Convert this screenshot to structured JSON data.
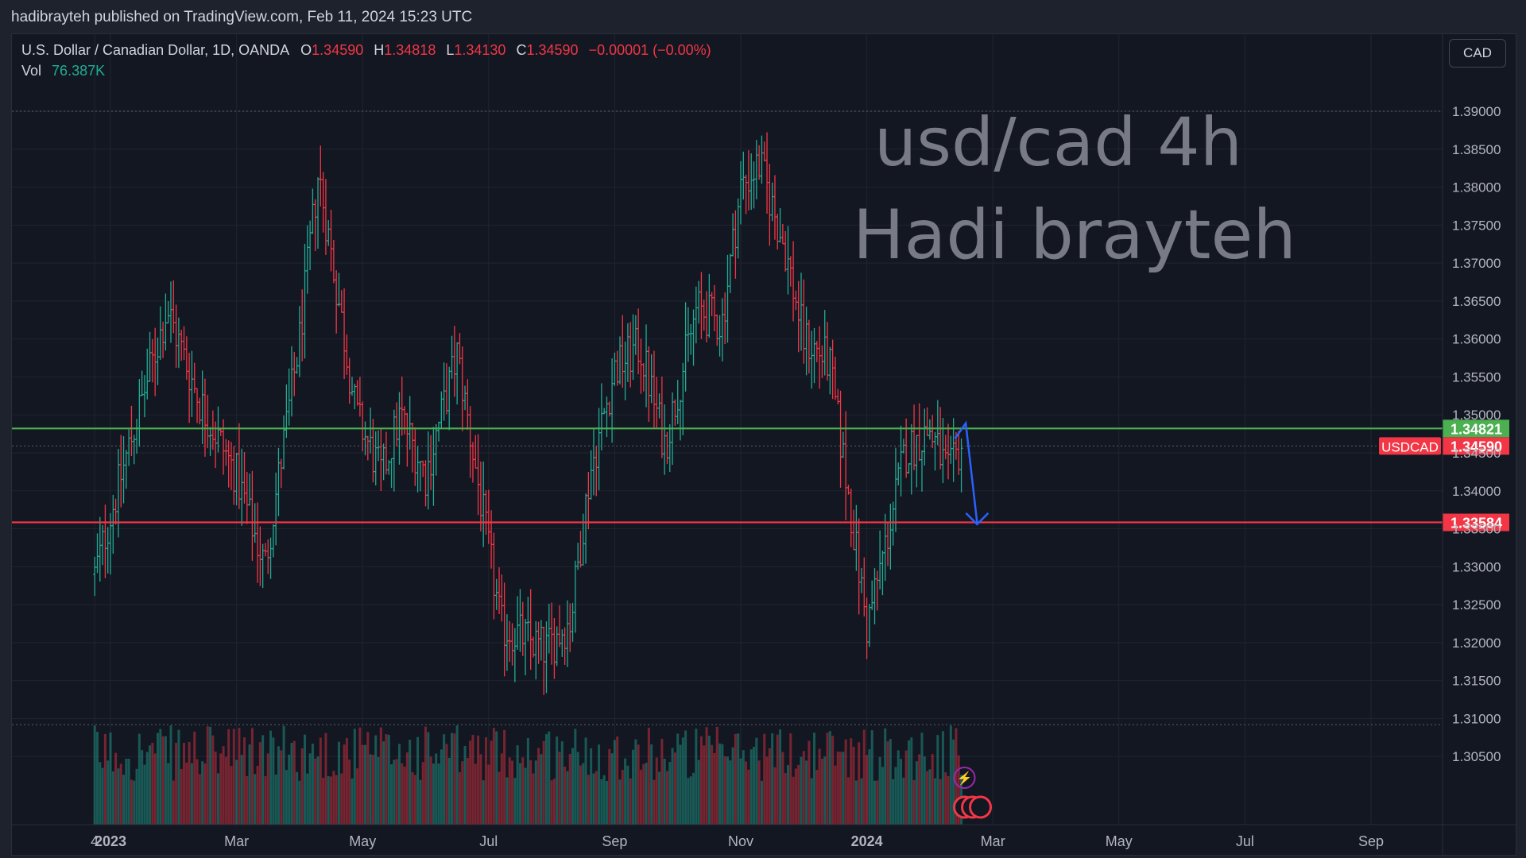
{
  "header": {
    "published_line": "hadibrayteh published on TradingView.com, Feb 11, 2024 15:23 UTC"
  },
  "legend": {
    "symbol": "U.S. Dollar / Canadian Dollar, 1D, OANDA",
    "o_label": "O",
    "o_value": "1.34590",
    "h_label": "H",
    "h_value": "1.34818",
    "l_label": "L",
    "l_value": "1.34130",
    "c_label": "C",
    "c_value": "1.34590",
    "change": "−0.00001 (−0.00%)",
    "vol_label": "Vol",
    "vol_value": "76.387K"
  },
  "currency_button": "CAD",
  "colors": {
    "background": "#131722",
    "up": "#22ab94",
    "down": "#f23645",
    "resistance": "#4caf50",
    "support": "#f23645",
    "arrow": "#2962ff",
    "annotation": "#787b86"
  },
  "chart_data": {
    "type": "ohlc",
    "title_annotation": [
      "usd/cad 4h",
      "Hadi brayteh"
    ],
    "y_axis": {
      "ticks": [
        "1.30500",
        "1.31000",
        "1.31500",
        "1.32000",
        "1.32500",
        "1.33000",
        "1.33500",
        "1.34000",
        "1.34500",
        "1.35000",
        "1.35500",
        "1.36000",
        "1.36500",
        "1.37000",
        "1.37500",
        "1.38000",
        "1.38500",
        "1.39000"
      ],
      "ylim": [
        1.3025,
        1.3962
      ]
    },
    "x_axis": {
      "ticks": [
        "4",
        "2023",
        "Mar",
        "May",
        "Jul",
        "Sep",
        "Nov",
        "2024",
        "Mar",
        "May",
        "Jul",
        "Sep"
      ],
      "tick_times": [
        -0.25,
        0,
        2,
        4,
        6,
        8,
        10,
        12,
        14,
        16,
        18,
        20
      ],
      "xlim": [
        -0.28,
        23.35
      ]
    },
    "grid": true,
    "price_lines": [
      {
        "label": "1.34821",
        "value": 1.34821,
        "color": "#4caf50"
      },
      {
        "label": "1.34590",
        "value": 1.3459,
        "tag": "USDCAD",
        "color": "#f23645"
      },
      {
        "label": "1.33584",
        "value": 1.33584,
        "color": "#f23645"
      }
    ],
    "dotted_lines": [
      1.39,
      1.3459,
      1.3092
    ],
    "key_points": [
      {
        "t": -0.25,
        "close": 1.329
      },
      {
        "t": 0.3,
        "close": 1.346
      },
      {
        "t": 0.9,
        "close": 1.364
      },
      {
        "t": 1.4,
        "close": 1.352
      },
      {
        "t": 2.0,
        "close": 1.342
      },
      {
        "t": 2.45,
        "close": 1.33
      },
      {
        "t": 3.0,
        "close": 1.36
      },
      {
        "t": 3.3,
        "close": 1.382
      },
      {
        "t": 3.9,
        "close": 1.35
      },
      {
        "t": 4.3,
        "close": 1.342
      },
      {
        "t": 4.6,
        "close": 1.35
      },
      {
        "t": 5.0,
        "close": 1.342
      },
      {
        "t": 5.5,
        "close": 1.358
      },
      {
        "t": 6.2,
        "close": 1.322
      },
      {
        "t": 6.5,
        "close": 1.321
      },
      {
        "t": 6.9,
        "close": 1.319
      },
      {
        "t": 7.3,
        "close": 1.323
      },
      {
        "t": 7.6,
        "close": 1.342
      },
      {
        "t": 8.0,
        "close": 1.356
      },
      {
        "t": 8.4,
        "close": 1.359
      },
      {
        "t": 8.8,
        "close": 1.346
      },
      {
        "t": 9.3,
        "close": 1.364
      },
      {
        "t": 9.7,
        "close": 1.362
      },
      {
        "t": 10.0,
        "close": 1.38
      },
      {
        "t": 10.3,
        "close": 1.383
      },
      {
        "t": 10.7,
        "close": 1.372
      },
      {
        "t": 11.0,
        "close": 1.36
      },
      {
        "t": 11.4,
        "close": 1.357
      },
      {
        "t": 11.7,
        "close": 1.34
      },
      {
        "t": 12.0,
        "close": 1.322
      },
      {
        "t": 12.3,
        "close": 1.333
      },
      {
        "t": 12.6,
        "close": 1.345
      },
      {
        "t": 13.0,
        "close": 1.348
      },
      {
        "t": 13.3,
        "close": 1.342
      },
      {
        "t": 13.5,
        "close": 1.3459
      }
    ],
    "arrow": {
      "points": [
        {
          "t": 13.4,
          "price": 1.3469
        },
        {
          "t": 13.57,
          "price": 1.3489
        },
        {
          "t": 13.75,
          "price": 1.3358
        }
      ]
    },
    "volume": {
      "label": "Vol",
      "last": "76.387K"
    }
  }
}
